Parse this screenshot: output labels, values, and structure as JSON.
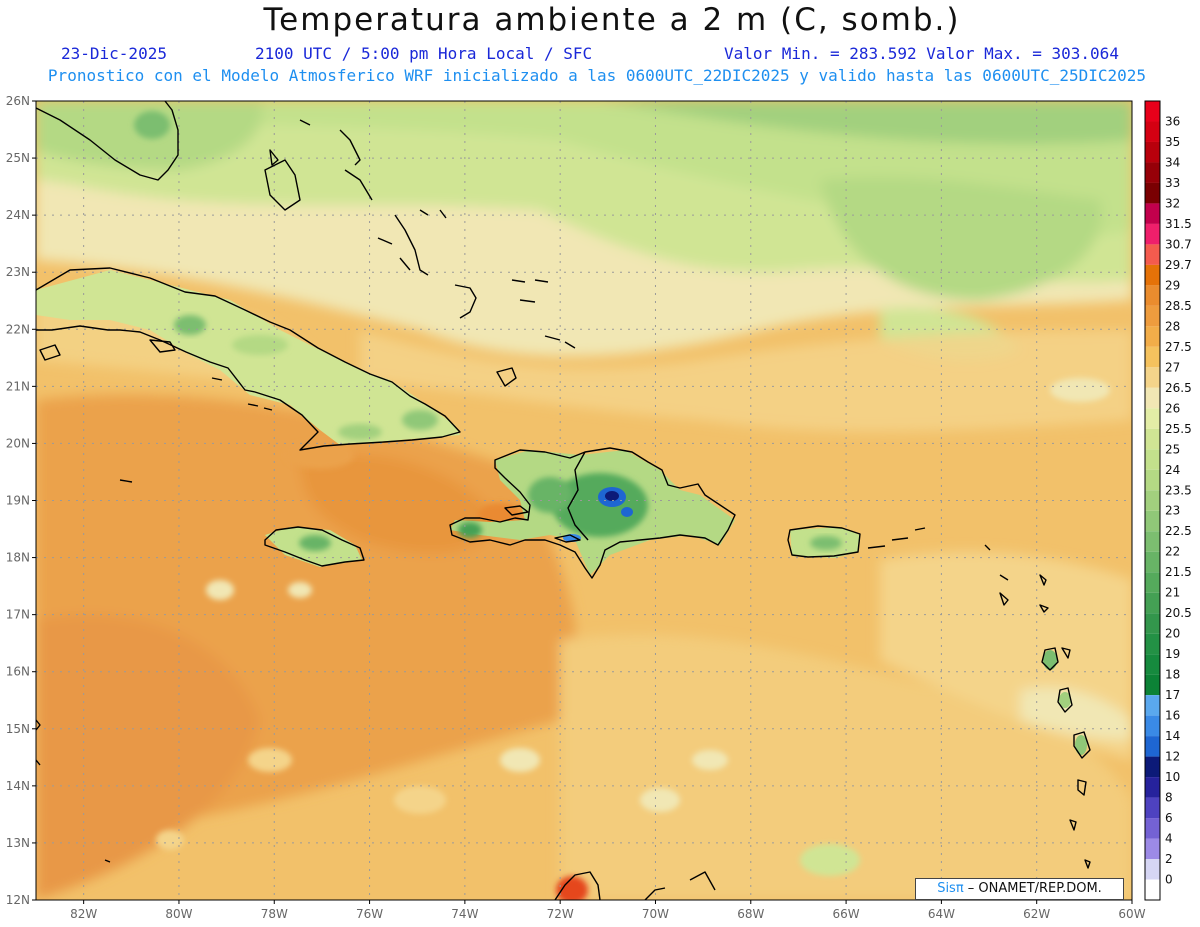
{
  "title": "Temperatura ambiente a 2 m (C, somb.)",
  "info": {
    "date": "23-Dic-2025",
    "time": "2100 UTC / 5:00 pm Hora Local / SFC",
    "minmax": "Valor Min. = 283.592  Valor Max. = 303.064"
  },
  "subtitle": "Pronostico con el Modelo Atmosferico WRF inicializado a las 0600UTC_22DIC2025 y valido hasta las  0600UTC_25DIC2025",
  "map": {
    "lon_labels": [
      "82W",
      "80W",
      "78W",
      "76W",
      "74W",
      "72W",
      "70W",
      "68W",
      "66W",
      "64W",
      "62W",
      "60W"
    ],
    "lat_labels": [
      "26N",
      "25N",
      "24N",
      "23N",
      "22N",
      "21N",
      "20N",
      "19N",
      "18N",
      "17N",
      "16N",
      "15N",
      "14N",
      "13N",
      "12N"
    ],
    "colorbar": [
      {
        "label": "36",
        "color": "#e8001a"
      },
      {
        "label": "35",
        "color": "#d40012"
      },
      {
        "label": "34",
        "color": "#b8000c"
      },
      {
        "label": "33",
        "color": "#960008"
      },
      {
        "label": "32",
        "color": "#7a0002"
      },
      {
        "label": "31.5",
        "color": "#c2004c"
      },
      {
        "label": "30.7",
        "color": "#ef1f6b"
      },
      {
        "label": "29.7",
        "color": "#f45b4e"
      },
      {
        "label": "29",
        "color": "#e57208"
      },
      {
        "label": "28.5",
        "color": "#ea8c2e"
      },
      {
        "label": "28",
        "color": "#ee9c3e"
      },
      {
        "label": "27.5",
        "color": "#f2ad49"
      },
      {
        "label": "27",
        "color": "#f5c25e"
      },
      {
        "label": "26.5",
        "color": "#f4d48a"
      },
      {
        "label": "26",
        "color": "#f1e7b4"
      },
      {
        "label": "25.5",
        "color": "#e3eda6"
      },
      {
        "label": "25",
        "color": "#d0e594"
      },
      {
        "label": "24",
        "color": "#c3e18c"
      },
      {
        "label": "23.5",
        "color": "#b4d984"
      },
      {
        "label": "23",
        "color": "#a2d07e"
      },
      {
        "label": "22.5",
        "color": "#90c878"
      },
      {
        "label": "22",
        "color": "#7cbe70"
      },
      {
        "label": "21.5",
        "color": "#68b466"
      },
      {
        "label": "21",
        "color": "#55aa5c"
      },
      {
        "label": "20.5",
        "color": "#44a054"
      },
      {
        "label": "20",
        "color": "#33964c"
      },
      {
        "label": "19",
        "color": "#239145"
      },
      {
        "label": "18",
        "color": "#168a3e"
      },
      {
        "label": "17",
        "color": "#0c8236"
      },
      {
        "label": "16",
        "color": "#5aa8ee"
      },
      {
        "label": "14",
        "color": "#3a8ae6"
      },
      {
        "label": "12",
        "color": "#1e66d2"
      },
      {
        "label": "10",
        "color": "#0c1a78"
      },
      {
        "label": "8",
        "color": "#26229c"
      },
      {
        "label": "6",
        "color": "#4e42c0"
      },
      {
        "label": "4",
        "color": "#7462d4"
      },
      {
        "label": "2",
        "color": "#9c8ae6"
      },
      {
        "label": "0",
        "color": "#d6d6f4"
      }
    ]
  },
  "watermark": {
    "logo": "Sisπ",
    "text": " – ONAMET/REP.DOM."
  }
}
